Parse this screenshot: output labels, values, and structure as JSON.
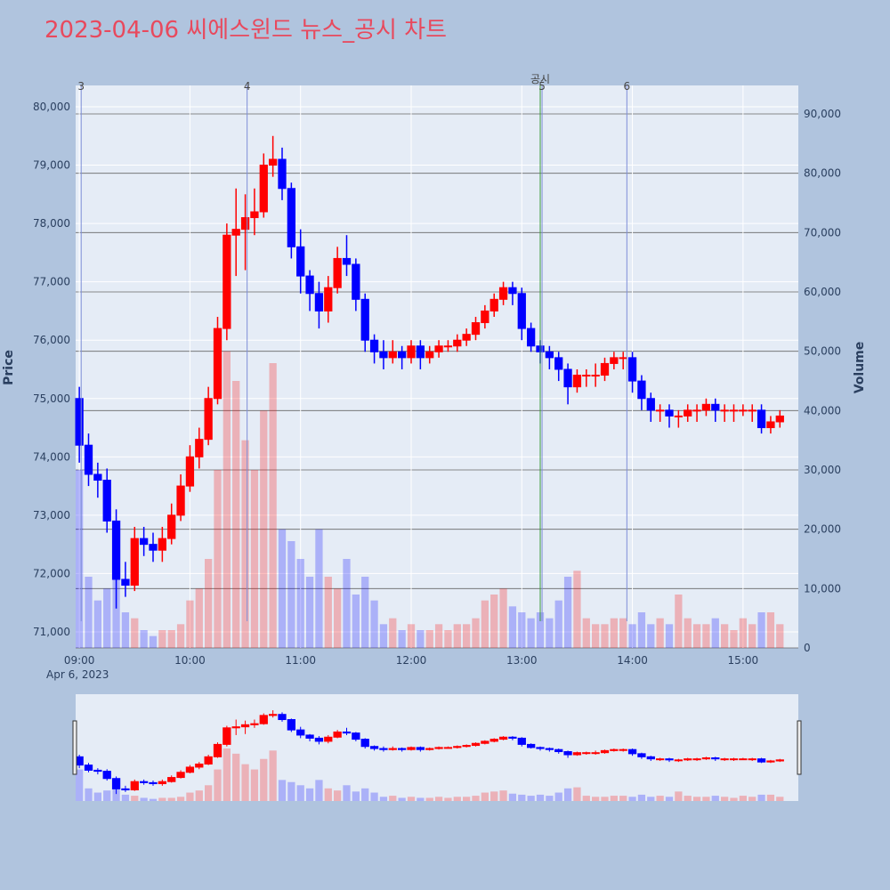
{
  "chart_data": {
    "type": "candlestick",
    "title": "2023-04-06 씨에스윈드 뉴스_공시 차트",
    "y_title": "Price",
    "y2_title": "Volume",
    "x": [
      "09:00",
      "09:05",
      "09:10",
      "09:15",
      "09:20",
      "09:25",
      "09:30",
      "09:35",
      "09:40",
      "09:45",
      "09:50",
      "09:55",
      "10:00",
      "10:05",
      "10:10",
      "10:15",
      "10:20",
      "10:25",
      "10:30",
      "10:35",
      "10:40",
      "10:45",
      "10:50",
      "10:55",
      "11:00",
      "11:05",
      "11:10",
      "11:15",
      "11:20",
      "11:25",
      "11:30",
      "11:35",
      "11:40",
      "11:45",
      "11:50",
      "11:55",
      "12:00",
      "12:05",
      "12:10",
      "12:15",
      "12:20",
      "12:25",
      "12:30",
      "12:35",
      "12:40",
      "12:45",
      "12:50",
      "12:55",
      "13:00",
      "13:05",
      "13:10",
      "13:15",
      "13:20",
      "13:25",
      "13:30",
      "13:35",
      "13:40",
      "13:45",
      "13:50",
      "13:55",
      "14:00",
      "14:05",
      "14:10",
      "14:15",
      "14:20",
      "14:25",
      "14:30",
      "14:35",
      "14:40",
      "14:45",
      "14:50",
      "14:55",
      "15:00",
      "15:05",
      "15:10",
      "15:15",
      "15:20"
    ],
    "open": [
      75000,
      74200,
      73700,
      73600,
      72900,
      71900,
      71800,
      72600,
      72500,
      72400,
      72600,
      73000,
      73500,
      74000,
      74300,
      75000,
      76200,
      77800,
      77900,
      78100,
      78200,
      79000,
      79100,
      78600,
      77600,
      77100,
      76800,
      76500,
      76900,
      77400,
      77300,
      76700,
      76000,
      75800,
      75700,
      75800,
      75700,
      75900,
      75700,
      75800,
      75900,
      75900,
      76000,
      76100,
      76300,
      76500,
      76700,
      76900,
      76800,
      76200,
      75900,
      75800,
      75700,
      75500,
      75200,
      75400,
      75400,
      75400,
      75600,
      75700,
      75700,
      75300,
      75000,
      74800,
      74800,
      74700,
      74700,
      74800,
      74800,
      74900,
      74800,
      74800,
      74800,
      74800,
      74800,
      74500,
      74600
    ],
    "high": [
      75200,
      74400,
      73900,
      73800,
      73100,
      72200,
      72800,
      72800,
      72700,
      72800,
      73200,
      73700,
      74200,
      74500,
      75200,
      76400,
      78000,
      78600,
      78500,
      78600,
      79200,
      79500,
      79300,
      78700,
      77900,
      77200,
      77000,
      77100,
      77600,
      77800,
      77400,
      76800,
      76100,
      76000,
      76000,
      75900,
      76000,
      76000,
      75900,
      76000,
      76000,
      76100,
      76200,
      76400,
      76600,
      76800,
      77000,
      77000,
      76900,
      76300,
      76000,
      75900,
      75800,
      75600,
      75500,
      75500,
      75600,
      75700,
      75800,
      75800,
      75800,
      75400,
      75100,
      74900,
      74900,
      74800,
      74900,
      74900,
      75000,
      75000,
      74900,
      74900,
      74900,
      74900,
      74900,
      74700,
      74800
    ],
    "low": [
      73900,
      73500,
      73300,
      72700,
      71400,
      71600,
      71700,
      72300,
      72200,
      72200,
      72500,
      72900,
      73400,
      73800,
      74200,
      74900,
      76000,
      77100,
      77200,
      77800,
      78100,
      78800,
      78400,
      77400,
      76800,
      76500,
      76200,
      76300,
      76800,
      77100,
      76500,
      75800,
      75600,
      75500,
      75600,
      75500,
      75600,
      75500,
      75600,
      75700,
      75800,
      75800,
      75900,
      76000,
      76200,
      76400,
      76600,
      76600,
      76000,
      75800,
      75600,
      75500,
      75300,
      74900,
      75100,
      75200,
      75200,
      75300,
      75500,
      75500,
      75100,
      74800,
      74600,
      74600,
      74500,
      74500,
      74600,
      74600,
      74700,
      74600,
      74600,
      74600,
      74700,
      74600,
      74400,
      74400,
      74500
    ],
    "close": [
      74200,
      73700,
      73600,
      72900,
      71900,
      71800,
      72600,
      72500,
      72400,
      72600,
      73000,
      73500,
      74000,
      74300,
      75000,
      76200,
      77800,
      77900,
      78100,
      78200,
      79000,
      79100,
      78600,
      77600,
      77100,
      76800,
      76500,
      76900,
      77400,
      77300,
      76700,
      76000,
      75800,
      75700,
      75800,
      75700,
      75900,
      75700,
      75800,
      75900,
      75900,
      76000,
      76100,
      76300,
      76500,
      76700,
      76900,
      76800,
      76200,
      75900,
      75800,
      75700,
      75500,
      75200,
      75400,
      75400,
      75400,
      75600,
      75700,
      75700,
      75300,
      75000,
      74800,
      74800,
      74700,
      74700,
      74800,
      74800,
      74900,
      74800,
      74800,
      74800,
      74800,
      74800,
      74500,
      74600,
      74700
    ],
    "volume": [
      30000,
      12000,
      8000,
      10000,
      15000,
      6000,
      5000,
      3000,
      2000,
      3000,
      3000,
      4000,
      8000,
      10000,
      15000,
      30000,
      50000,
      45000,
      35000,
      30000,
      40000,
      48000,
      20000,
      18000,
      15000,
      12000,
      20000,
      12000,
      10000,
      15000,
      9000,
      12000,
      8000,
      4000,
      5000,
      3000,
      4000,
      3000,
      3000,
      4000,
      3000,
      4000,
      4000,
      5000,
      8000,
      9000,
      10000,
      7000,
      6000,
      5000,
      6000,
      5000,
      8000,
      12000,
      13000,
      5000,
      4000,
      4000,
      5000,
      5000,
      4000,
      6000,
      4000,
      5000,
      4000,
      9000,
      5000,
      4000,
      4000,
      5000,
      4000,
      3000,
      5000,
      4000,
      6000,
      6000,
      4000
    ],
    "increasing_color": "#ff0000",
    "decreasing_color": "#0000ff",
    "xlim": [
      "08:58",
      "15:30"
    ],
    "xticks": [
      "09:00",
      "10:00",
      "11:00",
      "12:00",
      "13:00",
      "14:00",
      "15:00"
    ],
    "x_date_label": "Apr 6, 2023",
    "ylim": [
      70725,
      80366
    ],
    "yticks": [
      {
        "value": 71000,
        "label": "71,000"
      },
      {
        "value": 72000,
        "label": "72,000"
      },
      {
        "value": 73000,
        "label": "73,000"
      },
      {
        "value": 74000,
        "label": "74,000"
      },
      {
        "value": 75000,
        "label": "75,000"
      },
      {
        "value": 76000,
        "label": "76,000"
      },
      {
        "value": 77000,
        "label": "77,000"
      },
      {
        "value": 78000,
        "label": "78,000"
      },
      {
        "value": 79000,
        "label": "79,000"
      },
      {
        "value": 80000,
        "label": "80,000"
      }
    ],
    "y2lim": [
      0,
      94800
    ],
    "y2ticks": [
      0,
      {
        "value": 10000,
        "label": "10,000"
      },
      {
        "value": 20000,
        "label": "20,000"
      },
      {
        "value": 30000,
        "label": "30,000"
      },
      {
        "value": 40000,
        "label": "40,000"
      },
      {
        "value": 50000,
        "label": "50,000"
      },
      {
        "value": 60000,
        "label": "60,000"
      },
      {
        "value": 70000,
        "label": "70,000"
      },
      {
        "value": 80000,
        "label": "80,000"
      },
      {
        "value": 90000,
        "label": "90,000"
      }
    ],
    "annotations": [
      {
        "x": "09:01",
        "text": "3",
        "color": "#7f8fd8"
      },
      {
        "x": "10:31",
        "text": "4",
        "color": "#7f8fd8"
      },
      {
        "x": "13:10",
        "text": "공시",
        "color": "#3a9a3a"
      },
      {
        "x": "13:11",
        "text": "5",
        "color": "#7f8fd8"
      },
      {
        "x": "13:57",
        "text": "6",
        "color": "#7f8fd8"
      }
    ],
    "grid": true,
    "range_slider": true
  }
}
